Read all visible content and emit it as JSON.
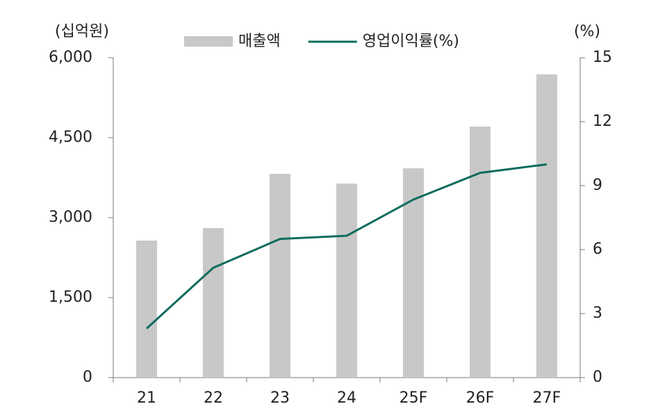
{
  "chart_data": {
    "type": "bar",
    "y_label": "(십억원)",
    "y2_label": "(%)",
    "categories": [
      "21",
      "22",
      "23",
      "24",
      "25F",
      "26F",
      "27F"
    ],
    "series": [
      {
        "name": "매출액",
        "type": "bar",
        "color": "#c8c8c8",
        "values": [
          2570,
          2804,
          3822,
          3639,
          3926,
          4709,
          5687
        ]
      },
      {
        "name": "영업이익률(%)",
        "type": "line",
        "axis": "y2",
        "color": "#0b6b5d",
        "values": [
          2.3,
          5.15,
          6.5,
          6.65,
          8.35,
          9.6,
          10.0
        ]
      }
    ],
    "ylim": [
      0,
      6000
    ],
    "yticks": [
      0,
      {
        "value": 1500,
        "label": "1,500"
      },
      {
        "value": 3000,
        "label": "3,000"
      },
      {
        "value": 4500,
        "label": "4,500"
      },
      {
        "value": 6000,
        "label": "6,000"
      }
    ],
    "y2lim": [
      0,
      15
    ],
    "y2ticks": [
      0,
      3,
      6,
      9,
      12,
      15
    ],
    "grid": false,
    "legend": "top"
  }
}
